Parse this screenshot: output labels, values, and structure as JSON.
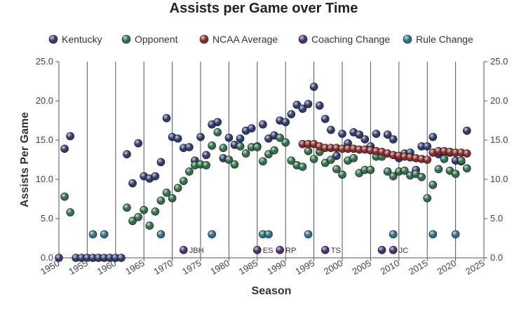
{
  "chart_data": {
    "type": "scatter",
    "title": "Assists per Game over Time",
    "xlabel": "Season",
    "ylabel": "Assists Per Game",
    "xlim": [
      1950,
      2025
    ],
    "ylim": [
      0,
      25
    ],
    "x_ticks": [
      1950,
      1955,
      1960,
      1965,
      1970,
      1975,
      1980,
      1985,
      1990,
      1995,
      2000,
      2005,
      2010,
      2015,
      2020,
      2025
    ],
    "y_ticks": [
      "0.0",
      "5.0",
      "10.0",
      "15.0",
      "20.0",
      "25.0"
    ],
    "grid": "vertical",
    "legend_position": "top",
    "series": [
      {
        "name": "Kentucky",
        "color": "#2f3a6e",
        "x": [
          1950,
          1951,
          1952,
          1953,
          1954,
          1955,
          1956,
          1957,
          1958,
          1959,
          1960,
          1961,
          1962,
          1963,
          1964,
          1965,
          1966,
          1967,
          1968,
          1969,
          1970,
          1971,
          1972,
          1973,
          1974,
          1975,
          1976,
          1977,
          1978,
          1979,
          1980,
          1981,
          1982,
          1983,
          1984,
          1985,
          1986,
          1987,
          1988,
          1989,
          1990,
          1991,
          1992,
          1993,
          1994,
          1995,
          1996,
          1997,
          1998,
          1999,
          2000,
          2001,
          2002,
          2003,
          2004,
          2005,
          2006,
          2007,
          2008,
          2009,
          2010,
          2011,
          2012,
          2013,
          2014,
          2015,
          2016,
          2017,
          2018,
          2019,
          2020,
          2021,
          2022
        ],
        "y": [
          0,
          13.9,
          15.5,
          0,
          0,
          0,
          0,
          0,
          0,
          0,
          0,
          0,
          13.2,
          9.5,
          14.6,
          10.4,
          10.1,
          10.4,
          12.2,
          17.8,
          15.4,
          15.2,
          14.0,
          14.1,
          12.4,
          15.4,
          13.1,
          17.0,
          17.3,
          12.7,
          15.3,
          14.4,
          15.2,
          16.2,
          16.5,
          14.2,
          17.0,
          15.2,
          15.6,
          17.5,
          17.3,
          18.3,
          19.5,
          19.0,
          19.6,
          21.8,
          19.4,
          17.7,
          16.3,
          13.0,
          15.8,
          14.6,
          16.0,
          15.7,
          15.1,
          14.2,
          15.8,
          13.1,
          15.7,
          15.1,
          12.7,
          13.3,
          13.4,
          11.2,
          14.2,
          14.2,
          15.4,
          13.2,
          13.5,
          13.4,
          12.4,
          12.3,
          16.2
        ]
      },
      {
        "name": "Opponent",
        "color": "#2f6e49",
        "x": [
          1951,
          1952,
          1962,
          1963,
          1964,
          1965,
          1966,
          1967,
          1968,
          1969,
          1970,
          1971,
          1972,
          1973,
          1974,
          1975,
          1976,
          1977,
          1978,
          1979,
          1980,
          1981,
          1982,
          1983,
          1984,
          1985,
          1986,
          1987,
          1988,
          1989,
          1990,
          1991,
          1992,
          1993,
          1994,
          1995,
          1996,
          1997,
          1998,
          1999,
          2000,
          2001,
          2002,
          2003,
          2004,
          2005,
          2006,
          2007,
          2008,
          2009,
          2010,
          2011,
          2012,
          2013,
          2014,
          2015,
          2016,
          2017,
          2018,
          2019,
          2020,
          2021,
          2022
        ],
        "y": [
          7.8,
          5.8,
          6.4,
          4.7,
          5.2,
          6.1,
          4.1,
          5.9,
          7.3,
          8.3,
          7.6,
          8.9,
          9.8,
          11.0,
          11.8,
          11.9,
          11.8,
          14.3,
          16.0,
          14.0,
          12.5,
          11.9,
          14.2,
          13.3,
          14.1,
          14.1,
          12.3,
          13.2,
          13.7,
          15.3,
          14.7,
          12.4,
          11.8,
          11.6,
          13.6,
          12.6,
          13.5,
          12.1,
          12.5,
          11.3,
          10.6,
          12.4,
          12.7,
          10.8,
          11.2,
          11.2,
          12.9,
          12.9,
          11.0,
          10.4,
          11.0,
          11.1,
          10.5,
          10.7,
          10.3,
          7.6,
          9.3,
          11.3,
          12.6,
          11.1,
          10.7,
          12.4,
          11.4
        ]
      },
      {
        "name": "NCAA Average",
        "color": "#8a2a2a",
        "x": [
          1993,
          1994,
          1995,
          1996,
          1997,
          1998,
          1999,
          2000,
          2001,
          2002,
          2003,
          2004,
          2005,
          2006,
          2007,
          2008,
          2009,
          2010,
          2011,
          2012,
          2013,
          2014,
          2015,
          2016,
          2017,
          2018,
          2019,
          2020,
          2021,
          2022
        ],
        "y": [
          14.5,
          14.5,
          14.5,
          14.2,
          14.0,
          14.0,
          14.0,
          13.9,
          13.9,
          13.9,
          13.8,
          13.8,
          13.7,
          13.6,
          13.5,
          13.3,
          13.1,
          13.0,
          12.9,
          12.8,
          12.7,
          12.6,
          12.5,
          13.4,
          13.6,
          13.6,
          13.5,
          13.4,
          13.4,
          13.3
        ]
      },
      {
        "name": "Coaching Change",
        "color": "#4a2f6e",
        "x": [
          1972,
          1985,
          1989,
          1997,
          2007,
          2009
        ],
        "y": [
          1.0,
          1.0,
          1.0,
          1.0,
          1.0,
          1.0
        ],
        "labels": [
          "JBH",
          "ES",
          "RP",
          "TS",
          "",
          "JC"
        ]
      },
      {
        "name": "Rule Change",
        "color": "#2f6e85",
        "x": [
          1956,
          1958,
          1968,
          1977,
          1986,
          1987,
          1994,
          2009,
          2016,
          2020
        ],
        "y": [
          3.0,
          3.0,
          3.0,
          3.0,
          3.0,
          3.0,
          3.0,
          3.0,
          3.0,
          3.0
        ]
      }
    ]
  }
}
